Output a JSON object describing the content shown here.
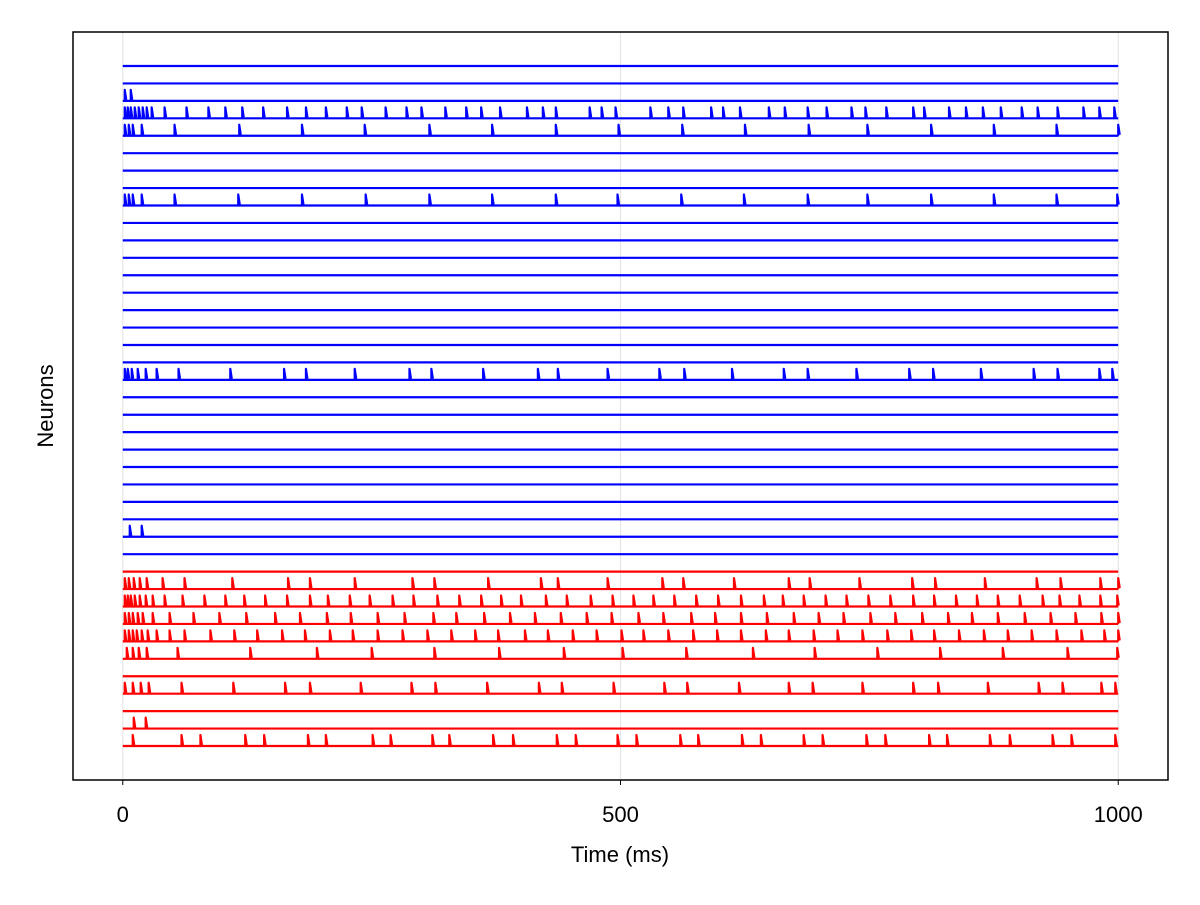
{
  "chart_data": {
    "type": "trace-raster",
    "xlabel": "Time (ms)",
    "ylabel": "Neurons",
    "xlim": [
      -50,
      1050
    ],
    "xticks": [
      0,
      500,
      1000
    ],
    "grid": true,
    "time_span": [
      0,
      1000
    ],
    "series": [
      {
        "color": "#0000ff",
        "spikes": []
      },
      {
        "color": "#0000ff",
        "spikes": []
      },
      {
        "color": "#0000ff",
        "spikes": [
          2,
          8
        ]
      },
      {
        "color": "#0000ff",
        "spikes": [
          2,
          5,
          8,
          12,
          16,
          20,
          24,
          29,
          42,
          64,
          86,
          103,
          120,
          141,
          165,
          184,
          204,
          225,
          240,
          264,
          285,
          300,
          324,
          345,
          360,
          379,
          406,
          422,
          435,
          469,
          481,
          495,
          530,
          548,
          563,
          591,
          603,
          620,
          649,
          665,
          688,
          707,
          732,
          746,
          767,
          794,
          805,
          830,
          847,
          864,
          882,
          903,
          919,
          939,
          965,
          981,
          996
        ]
      },
      {
        "color": "#0000ff",
        "spikes": [
          2,
          6,
          10,
          19,
          52,
          117,
          180,
          243,
          308,
          371,
          435,
          498,
          562,
          625,
          689,
          748,
          812,
          875,
          938,
          1000
        ]
      },
      {
        "color": "#0000ff",
        "spikes": []
      },
      {
        "color": "#0000ff",
        "spikes": []
      },
      {
        "color": "#0000ff",
        "spikes": []
      },
      {
        "color": "#0000ff",
        "spikes": [
          2,
          6,
          10,
          19,
          52,
          116,
          180,
          244,
          308,
          371,
          435,
          497,
          561,
          624,
          688,
          748,
          812,
          875,
          938,
          999
        ]
      },
      {
        "color": "#0000ff",
        "spikes": []
      },
      {
        "color": "#0000ff",
        "spikes": []
      },
      {
        "color": "#0000ff",
        "spikes": []
      },
      {
        "color": "#0000ff",
        "spikes": []
      },
      {
        "color": "#0000ff",
        "spikes": []
      },
      {
        "color": "#0000ff",
        "spikes": []
      },
      {
        "color": "#0000ff",
        "spikes": []
      },
      {
        "color": "#0000ff",
        "spikes": []
      },
      {
        "color": "#0000ff",
        "spikes": []
      },
      {
        "color": "#0000ff",
        "spikes": [
          2,
          5,
          9,
          15,
          23,
          34,
          56,
          108,
          162,
          184,
          233,
          288,
          310,
          362,
          417,
          437,
          487,
          539,
          564,
          612,
          664,
          688,
          737,
          790,
          814,
          862,
          915,
          939,
          981,
          994
        ]
      },
      {
        "color": "#0000ff",
        "spikes": []
      },
      {
        "color": "#0000ff",
        "spikes": []
      },
      {
        "color": "#0000ff",
        "spikes": []
      },
      {
        "color": "#0000ff",
        "spikes": []
      },
      {
        "color": "#0000ff",
        "spikes": []
      },
      {
        "color": "#0000ff",
        "spikes": []
      },
      {
        "color": "#0000ff",
        "spikes": []
      },
      {
        "color": "#0000ff",
        "spikes": []
      },
      {
        "color": "#0000ff",
        "spikes": [
          7,
          19
        ]
      },
      {
        "color": "#0000ff",
        "spikes": []
      },
      {
        "color": "#ff0000",
        "spikes": []
      },
      {
        "color": "#ff0000",
        "spikes": [
          2,
          6,
          11,
          17,
          24,
          40,
          62,
          110,
          166,
          188,
          233,
          291,
          313,
          367,
          420,
          437,
          487,
          542,
          563,
          614,
          669,
          690,
          740,
          793,
          816,
          866,
          918,
          942,
          982,
          1000
        ]
      },
      {
        "color": "#ff0000",
        "spikes": [
          2,
          5,
          8,
          12,
          17,
          23,
          30,
          42,
          60,
          82,
          103,
          122,
          143,
          165,
          188,
          206,
          228,
          248,
          271,
          292,
          316,
          338,
          360,
          380,
          400,
          425,
          446,
          470,
          492,
          513,
          533,
          554,
          576,
          598,
          621,
          644,
          663,
          684,
          706,
          727,
          749,
          771,
          794,
          815,
          837,
          858,
          879,
          901,
          924,
          941,
          961,
          982,
          999
        ]
      },
      {
        "color": "#ff0000",
        "spikes": [
          2,
          6,
          10,
          15,
          20,
          30,
          47,
          71,
          97,
          124,
          153,
          178,
          205,
          229,
          256,
          283,
          312,
          335,
          363,
          389,
          414,
          440,
          466,
          491,
          518,
          543,
          571,
          595,
          621,
          647,
          674,
          699,
          724,
          751,
          776,
          803,
          829,
          853,
          879,
          906,
          932,
          957,
          983,
          1000
        ]
      },
      {
        "color": "#ff0000",
        "spikes": [
          2,
          6,
          10,
          14,
          19,
          25,
          34,
          47,
          62,
          88,
          112,
          135,
          160,
          183,
          208,
          231,
          256,
          281,
          306,
          330,
          354,
          377,
          404,
          427,
          452,
          476,
          501,
          523,
          548,
          573,
          597,
          621,
          646,
          669,
          694,
          718,
          743,
          768,
          792,
          815,
          840,
          865,
          889,
          913,
          938,
          963,
          986,
          1000
        ]
      },
      {
        "color": "#ff0000",
        "spikes": [
          4,
          10,
          16,
          24,
          55,
          128,
          195,
          250,
          313,
          378,
          443,
          502,
          566,
          633,
          695,
          758,
          821,
          884,
          949,
          999
        ]
      },
      {
        "color": "#ff0000",
        "spikes": []
      },
      {
        "color": "#ff0000",
        "spikes": [
          2,
          10,
          18,
          26,
          59,
          111,
          163,
          188,
          239,
          290,
          314,
          366,
          418,
          441,
          493,
          544,
          567,
          619,
          669,
          693,
          743,
          794,
          819,
          869,
          920,
          944,
          983,
          997
        ]
      },
      {
        "color": "#ff0000",
        "spikes": []
      },
      {
        "color": "#ff0000",
        "spikes": [
          11,
          23
        ]
      },
      {
        "color": "#ff0000",
        "spikes": [
          10,
          59,
          78,
          123,
          142,
          186,
          204,
          251,
          269,
          311,
          328,
          372,
          392,
          436,
          455,
          497,
          516,
          560,
          578,
          622,
          641,
          684,
          703,
          747,
          766,
          810,
          828,
          871,
          891,
          934,
          953,
          997
        ]
      }
    ]
  }
}
